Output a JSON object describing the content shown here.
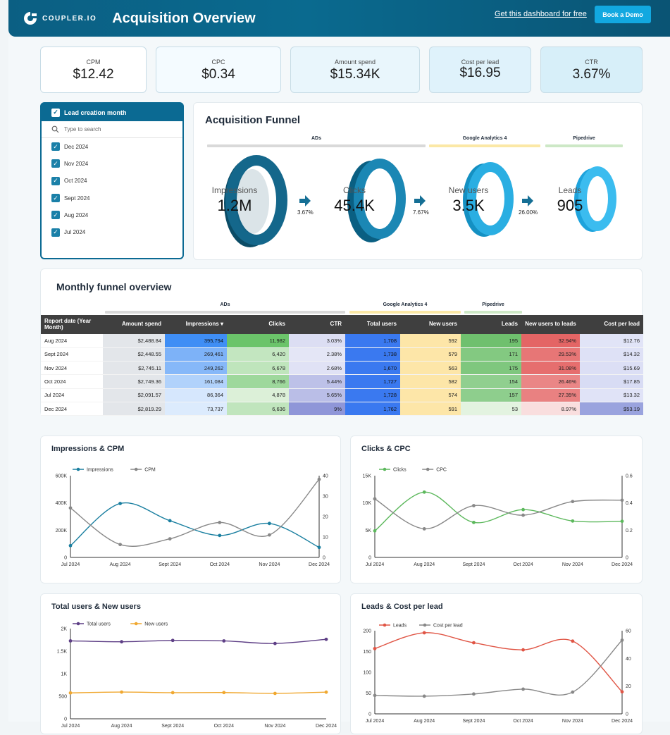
{
  "header": {
    "logo_text": "COUPLER.IO",
    "title": "Acquisition Overview",
    "link": "Get this dashboard for free",
    "demo_button": "Book a Demo"
  },
  "kpis": [
    {
      "label": "CPM",
      "value": "$12.42"
    },
    {
      "label": "CPC",
      "value": "$0.34"
    },
    {
      "label": "Amount spend",
      "value": "$15.34K"
    },
    {
      "label": "Cost per lead",
      "value": "$16.95"
    },
    {
      "label": "CTR",
      "value": "3.67%"
    }
  ],
  "filter": {
    "title": "Lead creation month",
    "search_placeholder": "Type to search",
    "items": [
      "Dec 2024",
      "Nov 2024",
      "Oct 2024",
      "Sept 2024",
      "Aug 2024",
      "Jul 2024"
    ]
  },
  "funnel": {
    "title": "Acquisition Funnel",
    "groups": [
      "ADs",
      "Google Analytics 4",
      "Pipedrive"
    ],
    "stages": [
      {
        "label": "Impressions",
        "value": "1.2M"
      },
      {
        "label": "Clicks",
        "value": "45.4K"
      },
      {
        "label": "New users",
        "value": "3.5K"
      },
      {
        "label": "Leads",
        "value": "905"
      }
    ],
    "rates": [
      "3.67%",
      "7.67%",
      "26.00%"
    ]
  },
  "table": {
    "title": "Monthly funnel overview",
    "groups": [
      "ADs",
      "Google Analytics 4",
      "Pipedrive"
    ],
    "sort_indicator": "▾",
    "columns": [
      "Report date (Year Month)",
      "Amount spend",
      "Impressions",
      "Clicks",
      "CTR",
      "Total users",
      "New users",
      "Leads",
      "New users to leads",
      "Cost per lead"
    ],
    "rows": [
      [
        "Aug 2024",
        "$2,488.84",
        "395,794",
        "11,982",
        "3.03%",
        "1,708",
        "592",
        "195",
        "32.94%",
        "$12.76"
      ],
      [
        "Sept 2024",
        "$2,448.55",
        "269,461",
        "6,420",
        "2.38%",
        "1,738",
        "579",
        "171",
        "29.53%",
        "$14.32"
      ],
      [
        "Nov 2024",
        "$2,745.11",
        "249,262",
        "6,678",
        "2.68%",
        "1,670",
        "563",
        "175",
        "31.08%",
        "$15.69"
      ],
      [
        "Oct 2024",
        "$2,749.36",
        "161,084",
        "8,766",
        "5.44%",
        "1,727",
        "582",
        "154",
        "26.46%",
        "$17.85"
      ],
      [
        "Jul 2024",
        "$2,091.57",
        "86,364",
        "4,878",
        "5.65%",
        "1,728",
        "574",
        "157",
        "27.35%",
        "$13.32"
      ],
      [
        "Dec 2024",
        "$2,819.29",
        "73,737",
        "6,636",
        "9%",
        "1,762",
        "591",
        "53",
        "8.97%",
        "$53.19"
      ]
    ]
  },
  "chart_data": [
    {
      "type": "line",
      "title": "Impressions & CPM",
      "categories": [
        "Jul 2024",
        "Aug 2024",
        "Sept 2024",
        "Oct 2024",
        "Nov 2024",
        "Dec 2024"
      ],
      "series": [
        {
          "name": "Impressions",
          "axis": "left",
          "color": "#1a7fa0",
          "values": [
            86364,
            395794,
            269461,
            161084,
            249262,
            73737
          ]
        },
        {
          "name": "CPM",
          "axis": "right",
          "color": "#888888",
          "values": [
            24.2,
            6.3,
            9.1,
            17.1,
            11.0,
            38.2
          ]
        }
      ],
      "left_ticks": [
        "0",
        "200K",
        "400K",
        "600K"
      ],
      "left_range": [
        0,
        600000
      ],
      "right_ticks": [
        "0",
        "10",
        "20",
        "30",
        "40"
      ],
      "right_range": [
        0,
        40
      ]
    },
    {
      "type": "line",
      "title": "Clicks & CPC",
      "categories": [
        "Jul 2024",
        "Aug 2024",
        "Sept 2024",
        "Oct 2024",
        "Nov 2024",
        "Dec 2024"
      ],
      "series": [
        {
          "name": "Clicks",
          "axis": "left",
          "color": "#5cb85c",
          "values": [
            4878,
            11982,
            6420,
            8766,
            6678,
            6636
          ]
        },
        {
          "name": "CPC",
          "axis": "right",
          "color": "#888888",
          "values": [
            0.43,
            0.21,
            0.38,
            0.31,
            0.41,
            0.42
          ]
        }
      ],
      "left_ticks": [
        "0",
        "5K",
        "10K",
        "15K"
      ],
      "left_range": [
        0,
        15000
      ],
      "right_ticks": [
        "0",
        "0.2",
        "0.4",
        "0.6"
      ],
      "right_range": [
        0,
        0.6
      ]
    },
    {
      "type": "line",
      "title": "Total users & New users",
      "categories": [
        "Jul 2024",
        "Aug 2024",
        "Sept 2024",
        "Oct 2024",
        "Nov 2024",
        "Dec 2024"
      ],
      "series": [
        {
          "name": "Total users",
          "axis": "left",
          "color": "#5e3f86",
          "values": [
            1728,
            1708,
            1738,
            1727,
            1670,
            1762
          ]
        },
        {
          "name": "New users",
          "axis": "left",
          "color": "#f0a830",
          "values": [
            574,
            592,
            579,
            582,
            563,
            591
          ]
        }
      ],
      "left_ticks": [
        "0",
        "500",
        "1K",
        "1.5K",
        "2K"
      ],
      "left_range": [
        0,
        2000
      ]
    },
    {
      "type": "line",
      "title": "Leads & Cost per lead",
      "categories": [
        "Jul 2024",
        "Aug 2024",
        "Sept 2024",
        "Oct 2024",
        "Nov 2024",
        "Dec 2024"
      ],
      "series": [
        {
          "name": "Leads",
          "axis": "left",
          "color": "#e05545",
          "values": [
            157,
            195,
            171,
            154,
            175,
            53
          ]
        },
        {
          "name": "Cost per lead",
          "axis": "right",
          "color": "#888888",
          "values": [
            13.32,
            12.76,
            14.32,
            17.85,
            15.69,
            53.19
          ]
        }
      ],
      "left_ticks": [
        "0",
        "50",
        "100",
        "150",
        "200"
      ],
      "left_range": [
        0,
        200
      ],
      "right_ticks": [
        "0",
        "20",
        "40",
        "60"
      ],
      "right_range": [
        0,
        60
      ]
    }
  ]
}
